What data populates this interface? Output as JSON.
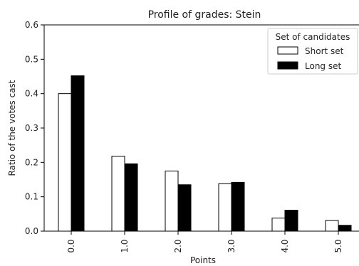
{
  "chart_data": {
    "type": "bar",
    "title": "Profile of grades: Stein",
    "xlabel": "Points",
    "ylabel": "Ratio of the votes cast",
    "categories": [
      "0.0",
      "1.0",
      "2.0",
      "3.0",
      "4.0",
      "5.0"
    ],
    "ylim": [
      0,
      0.6
    ],
    "yticks": [
      "0.0",
      "0.1",
      "0.2",
      "0.3",
      "0.4",
      "0.5",
      "0.6"
    ],
    "grid": false,
    "legend": {
      "title": "Set of candidates",
      "placement": "top-right"
    },
    "series": [
      {
        "name": "Short set",
        "values": [
          0.4,
          0.218,
          0.175,
          0.138,
          0.038,
          0.031
        ],
        "fill": "#ffffff",
        "stroke": "#000000"
      },
      {
        "name": "Long set",
        "values": [
          0.452,
          0.196,
          0.135,
          0.142,
          0.061,
          0.017
        ],
        "fill": "#000000",
        "stroke": "#000000"
      }
    ]
  }
}
